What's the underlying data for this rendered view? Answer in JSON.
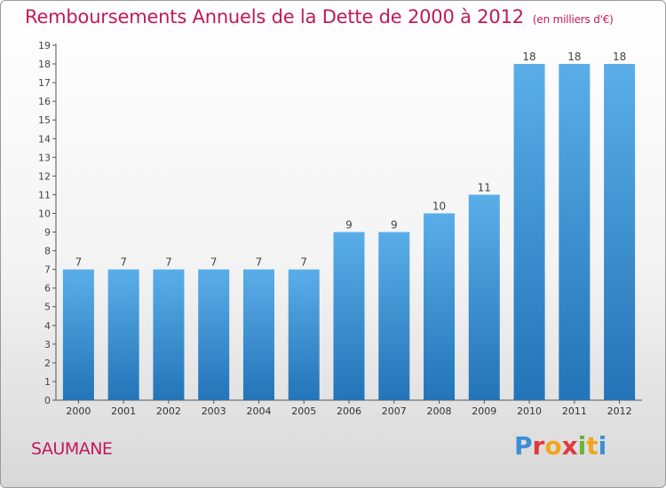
{
  "header": {
    "title": "Remboursements Annuels de la Dette de 2000 à 2012",
    "unit": "(en milliers d'€)"
  },
  "footer": {
    "commune": "SAUMANE",
    "brand": "Proxiti"
  },
  "colors": {
    "title": "#c2185b",
    "bar_light": "#5aaee8",
    "bar_dark": "#2374b8",
    "brand_blue": "#3c8fd6",
    "brand_red": "#e0393e",
    "brand_orange": "#f2a51c",
    "brand_green": "#6ab23e"
  },
  "chart_data": {
    "type": "bar",
    "title": "Remboursements Annuels de la Dette de 2000 à 2012",
    "subtitle": "(en milliers d'€)",
    "xlabel": "",
    "ylabel": "",
    "categories": [
      "2000",
      "2001",
      "2002",
      "2003",
      "2004",
      "2005",
      "2006",
      "2007",
      "2008",
      "2009",
      "2010",
      "2011",
      "2012"
    ],
    "values": [
      7,
      7,
      7,
      7,
      7,
      7,
      9,
      9,
      10,
      11,
      18,
      18,
      18
    ],
    "ylim": [
      0,
      19
    ],
    "yticks": [
      0,
      1,
      2,
      3,
      4,
      5,
      6,
      7,
      8,
      9,
      10,
      11,
      12,
      13,
      14,
      15,
      16,
      17,
      18,
      19
    ],
    "grid": false,
    "data_labels": true
  }
}
